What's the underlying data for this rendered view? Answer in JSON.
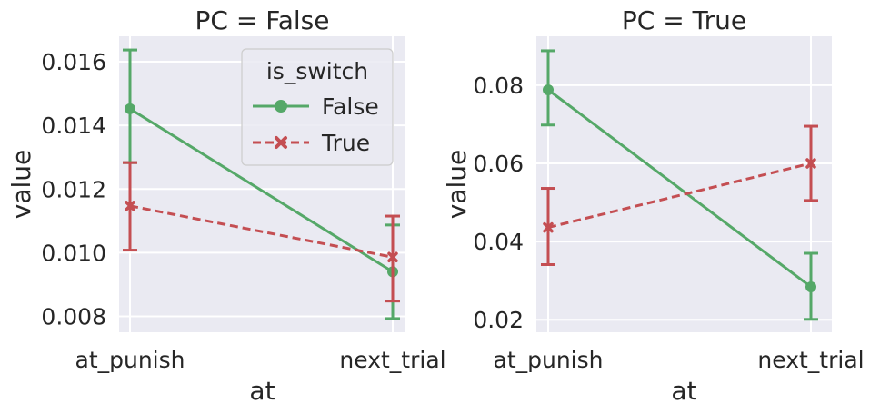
{
  "chart_data": [
    {
      "type": "line",
      "title": "PC = False",
      "xlabel": "at",
      "ylabel": "value",
      "categories": [
        "at_punish",
        "next_trial"
      ],
      "ylim": [
        0.0075,
        0.0168
      ],
      "yticks": [
        0.008,
        0.01,
        0.012,
        0.014,
        0.016
      ],
      "ytick_labels": [
        "0.008",
        "0.010",
        "0.012",
        "0.014",
        "0.016"
      ],
      "grid": true,
      "legend": {
        "title": "is_switch",
        "placement": "top-right"
      },
      "series": [
        {
          "name": "False",
          "color": "#55a868",
          "marker": "circle",
          "dash": "solid",
          "values": [
            0.01452,
            0.0094
          ],
          "ci_low": [
            0.01283,
            0.00793
          ],
          "ci_high": [
            0.01637,
            0.01087
          ]
        },
        {
          "name": "True",
          "color": "#c44e52",
          "marker": "x",
          "dash": "dashed",
          "values": [
            0.01147,
            0.00986
          ],
          "ci_low": [
            0.01008,
            0.00848
          ],
          "ci_high": [
            0.01283,
            0.01115
          ]
        }
      ]
    },
    {
      "type": "line",
      "title": "PC = True",
      "xlabel": "at",
      "ylabel": "value",
      "categories": [
        "at_punish",
        "next_trial"
      ],
      "ylim": [
        0.0168,
        0.0925
      ],
      "yticks": [
        0.02,
        0.04,
        0.06,
        0.08
      ],
      "ytick_labels": [
        "0.02",
        "0.04",
        "0.06",
        "0.08"
      ],
      "grid": true,
      "series": [
        {
          "name": "False",
          "color": "#55a868",
          "marker": "circle",
          "dash": "solid",
          "values": [
            0.0788,
            0.0284
          ],
          "ci_low": [
            0.0698,
            0.0201
          ],
          "ci_high": [
            0.0888,
            0.037
          ]
        },
        {
          "name": "True",
          "color": "#c44e52",
          "marker": "x",
          "dash": "dashed",
          "values": [
            0.0436,
            0.06
          ],
          "ci_low": [
            0.0341,
            0.0505
          ],
          "ci_high": [
            0.0536,
            0.0695
          ]
        }
      ]
    }
  ]
}
